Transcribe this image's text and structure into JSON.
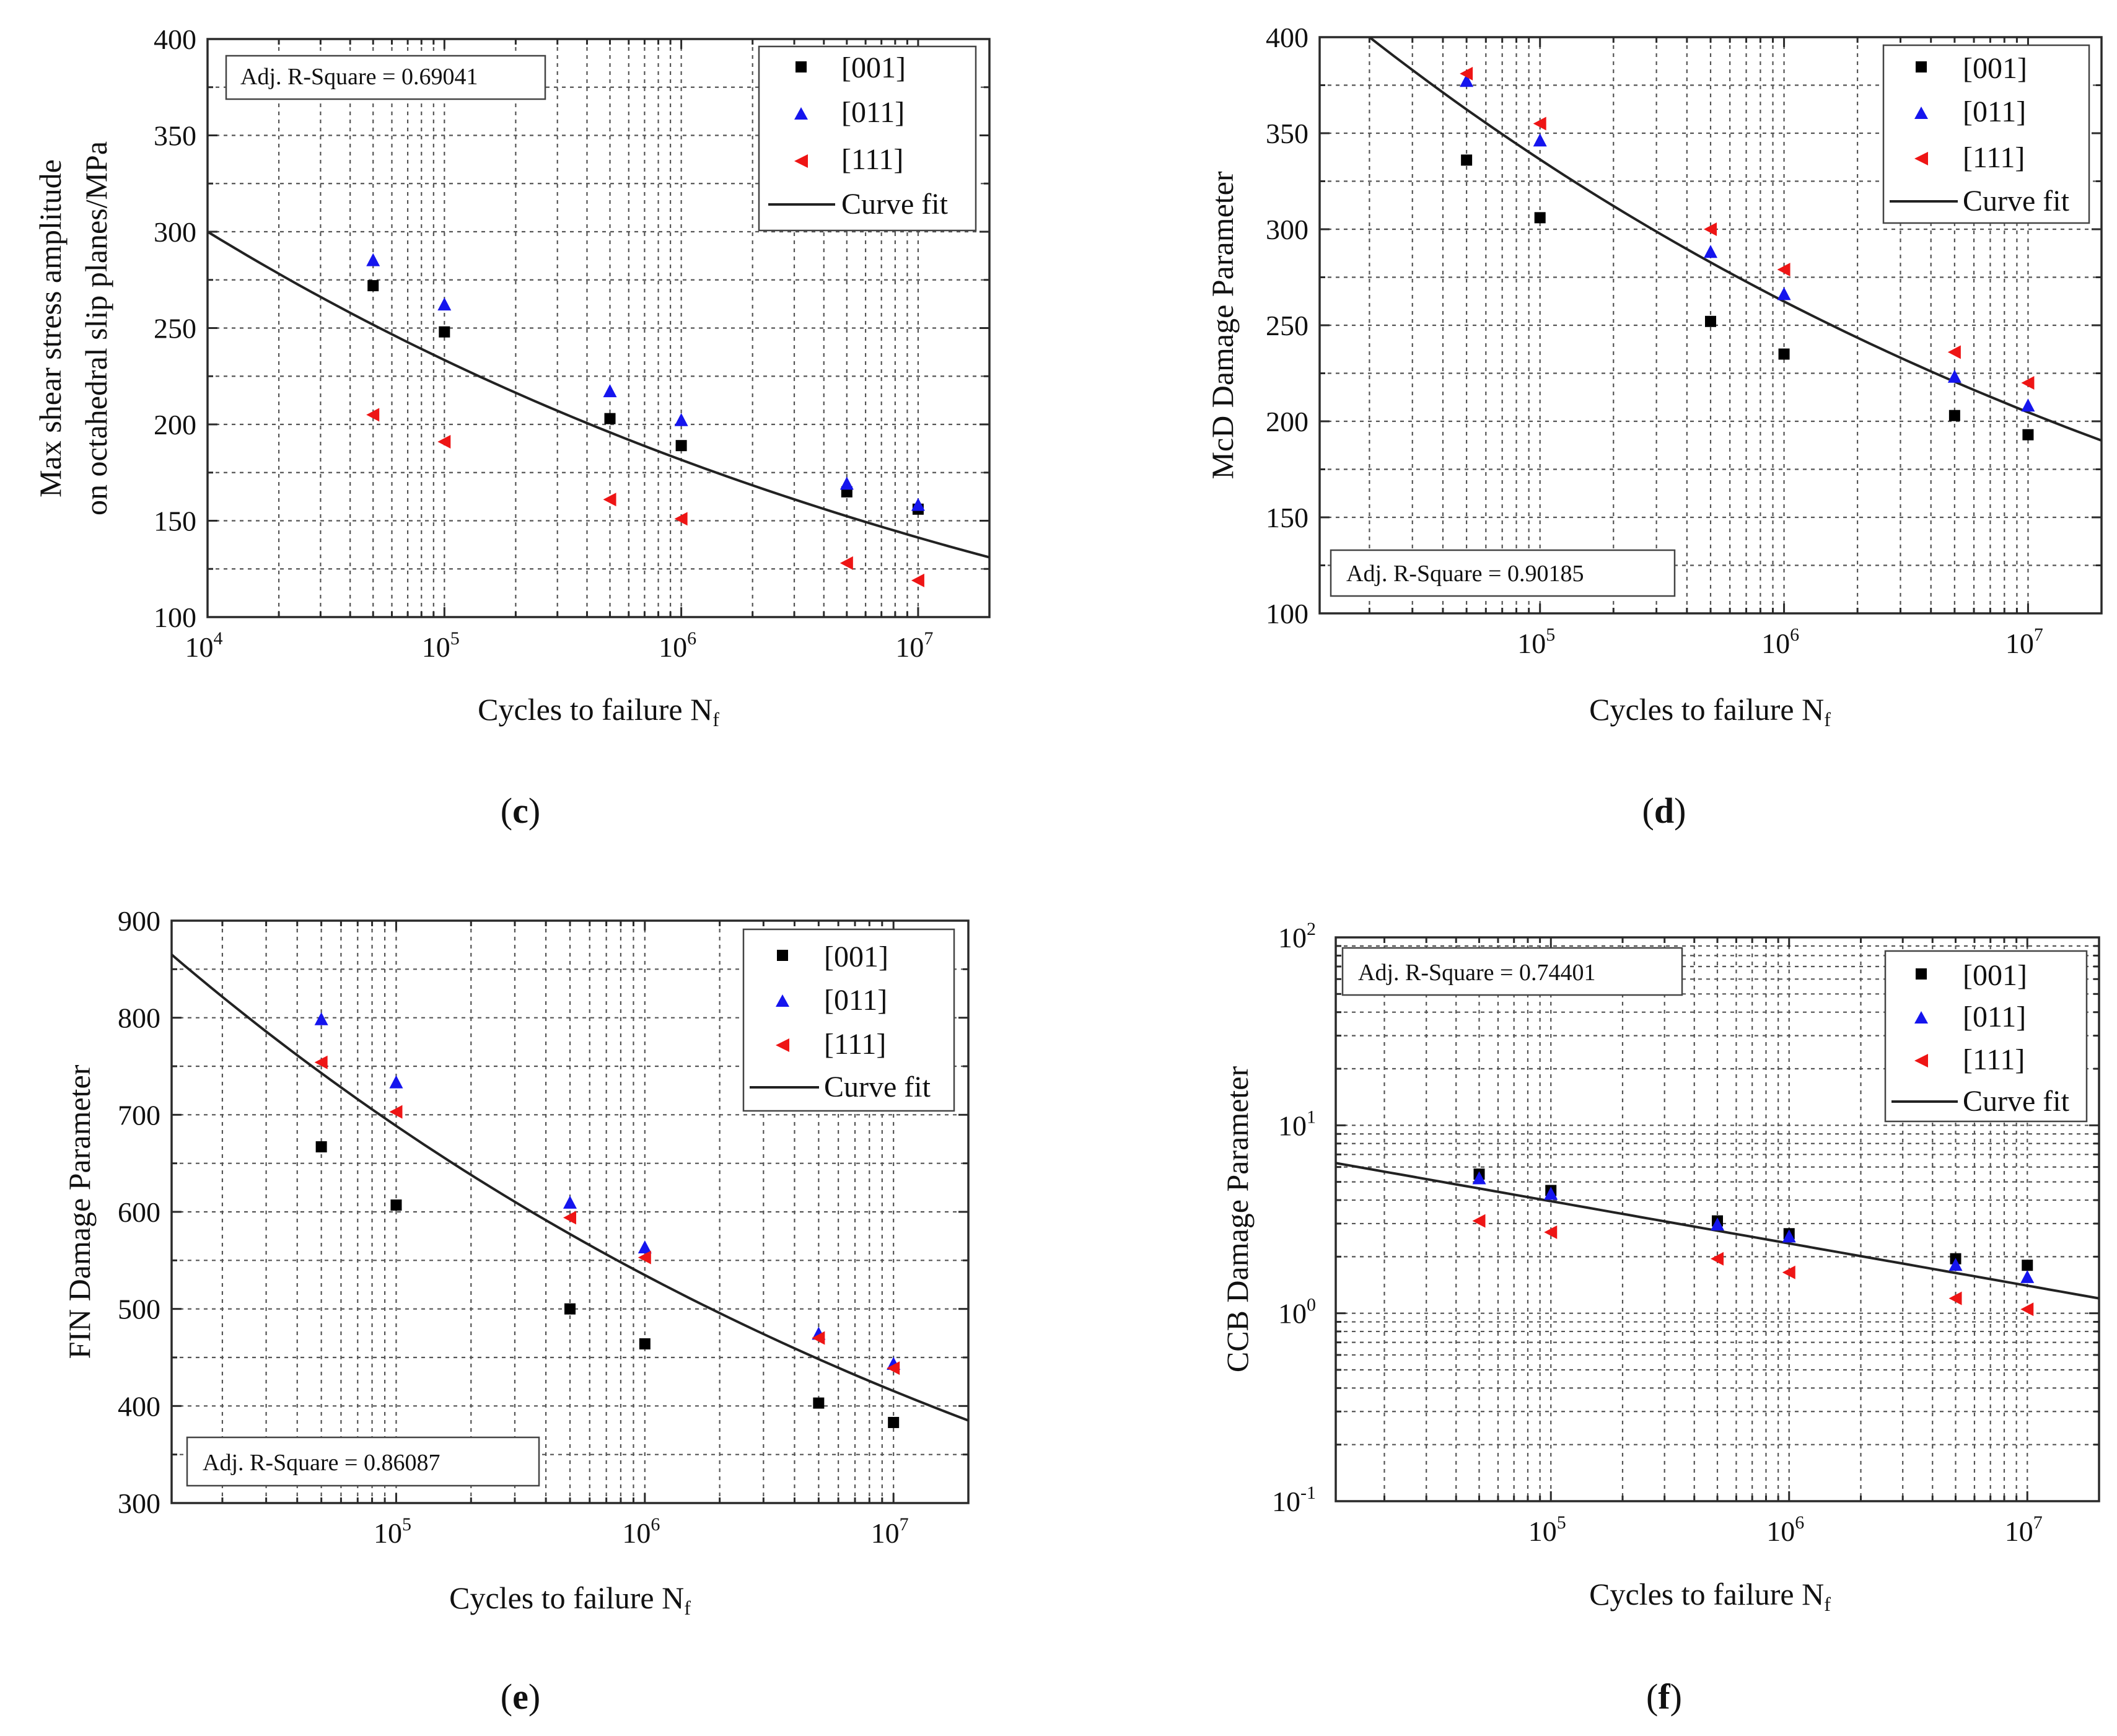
{
  "panels": [
    {
      "label": "c",
      "xlabel": "Cycles to failure N",
      "xlabel_sub": "f",
      "ylabel": [
        "Max shear stress amplitude",
        "on octahedral slip planes/MPa"
      ],
      "r2": "Adj. R-Square = 0.69041",
      "legend": [
        "[001]",
        "[011]",
        "[111]",
        "Curve fit"
      ]
    },
    {
      "label": "d",
      "xlabel": "Cycles to failure N",
      "xlabel_sub": "f",
      "ylabel": [
        "McD Damage Parameter"
      ],
      "r2": "Adj. R-Square = 0.90185",
      "legend": [
        "[001]",
        "[011]",
        "[111]",
        "Curve fit"
      ]
    },
    {
      "label": "e",
      "xlabel": "Cycles to failure N",
      "xlabel_sub": "f",
      "ylabel": [
        "FIN Damage Parameter"
      ],
      "r2": "Adj. R-Square = 0.86087",
      "legend": [
        "[001]",
        "[011]",
        "[111]",
        "Curve fit"
      ]
    },
    {
      "label": "f",
      "xlabel": "Cycles to failure N",
      "xlabel_sub": "f",
      "ylabel": [
        "CCB Damage Parameter"
      ],
      "r2": "Adj. R-Square = 0.74401",
      "legend": [
        "[001]",
        "[011]",
        "[111]",
        "Curve fit"
      ]
    }
  ],
  "colors": {
    "001": "#000000",
    "011": "#1515ee",
    "111": "#ee1515",
    "fit": "#222222"
  },
  "chart_data": [
    {
      "type": "scatter",
      "xscale": "log",
      "xlim": [
        10000,
        20000000
      ],
      "x_tick_labels": [
        [
          "10",
          "4"
        ],
        [
          "10",
          "5"
        ],
        [
          "10",
          "6"
        ],
        [
          "10",
          "7"
        ]
      ],
      "yscale": "linear",
      "ylim": [
        100,
        400
      ],
      "y_tick_labels": [
        "100",
        "150",
        "200",
        "250",
        "300",
        "350",
        "400"
      ],
      "grid": true,
      "series": [
        {
          "name": "[001]",
          "x": [
            50000,
            100000,
            500000,
            1000000,
            5000000,
            10000000
          ],
          "y": [
            272,
            248,
            203,
            189,
            165,
            156
          ]
        },
        {
          "name": "[011]",
          "x": [
            50000,
            100000,
            500000,
            1000000,
            5000000,
            10000000
          ],
          "y": [
            285,
            262,
            217,
            202,
            169,
            158
          ]
        },
        {
          "name": "[111]",
          "x": [
            50000,
            100000,
            500000,
            1000000,
            5000000,
            10000000
          ],
          "y": [
            205,
            191,
            161,
            151,
            128,
            119
          ]
        }
      ],
      "curve_fit": {
        "x": [
          10000,
          20000000
        ],
        "y": [
          300,
          131
        ]
      }
    },
    {
      "type": "scatter",
      "xscale": "log",
      "xlim": [
        12500,
        20000000
      ],
      "x_tick_labels": [
        [
          "10",
          "5"
        ],
        [
          "10",
          "6"
        ],
        [
          "10",
          "7"
        ]
      ],
      "yscale": "linear",
      "ylim": [
        100,
        400
      ],
      "y_tick_labels": [
        "100",
        "150",
        "200",
        "250",
        "300",
        "350",
        "400"
      ],
      "grid": true,
      "series": [
        {
          "name": "[001]",
          "x": [
            50000,
            100000,
            500000,
            1000000,
            5000000,
            10000000
          ],
          "y": [
            336,
            306,
            252,
            235,
            203,
            193
          ]
        },
        {
          "name": "[011]",
          "x": [
            50000,
            100000,
            500000,
            1000000,
            5000000,
            10000000
          ],
          "y": [
            377,
            346,
            288,
            266,
            223,
            208
          ]
        },
        {
          "name": "[111]",
          "x": [
            50000,
            100000,
            500000,
            1000000,
            5000000,
            10000000
          ],
          "y": [
            381,
            355,
            300,
            279,
            236,
            220
          ]
        }
      ],
      "curve_fit": {
        "x": [
          20000,
          20000000
        ],
        "y": [
          400,
          190
        ]
      }
    },
    {
      "type": "scatter",
      "xscale": "log",
      "xlim": [
        12500,
        20000000
      ],
      "x_tick_labels": [
        [
          "10",
          "5"
        ],
        [
          "10",
          "6"
        ],
        [
          "10",
          "7"
        ]
      ],
      "yscale": "linear",
      "ylim": [
        300,
        900
      ],
      "y_tick_labels": [
        "300",
        "400",
        "500",
        "600",
        "700",
        "800",
        "900"
      ],
      "grid": true,
      "series": [
        {
          "name": "[001]",
          "x": [
            50000,
            100000,
            500000,
            1000000,
            5000000,
            10000000
          ],
          "y": [
            667,
            607,
            500,
            464,
            403,
            383
          ]
        },
        {
          "name": "[011]",
          "x": [
            50000,
            100000,
            500000,
            1000000,
            5000000,
            10000000
          ],
          "y": [
            798,
            733,
            609,
            563,
            474,
            443
          ]
        },
        {
          "name": "[111]",
          "x": [
            50000,
            100000,
            500000,
            1000000,
            5000000,
            10000000
          ],
          "y": [
            754,
            703,
            594,
            553,
            470,
            439
          ]
        }
      ],
      "curve_fit": {
        "x": [
          12500,
          20000000
        ],
        "y": [
          865,
          385
        ]
      }
    },
    {
      "type": "scatter",
      "xscale": "log",
      "xlim": [
        12500,
        20000000
      ],
      "x_tick_labels": [
        [
          "10",
          "5"
        ],
        [
          "10",
          "6"
        ],
        [
          "10",
          "7"
        ]
      ],
      "yscale": "log",
      "ylim": [
        0.1,
        100
      ],
      "y_tick_labels": [
        [
          "10",
          "-1"
        ],
        [
          "10",
          "0"
        ],
        [
          "10",
          "1"
        ],
        [
          "10",
          "2"
        ]
      ],
      "grid": true,
      "series": [
        {
          "name": "[001]",
          "x": [
            50000,
            100000,
            500000,
            1000000,
            5000000,
            10000000
          ],
          "y": [
            5.5,
            4.5,
            3.1,
            2.65,
            1.95,
            1.8
          ]
        },
        {
          "name": "[011]",
          "x": [
            50000,
            100000,
            500000,
            1000000,
            5000000,
            10000000
          ],
          "y": [
            5.2,
            4.3,
            2.95,
            2.55,
            1.8,
            1.55
          ]
        },
        {
          "name": "[111]",
          "x": [
            50000,
            100000,
            500000,
            1000000,
            5000000,
            10000000
          ],
          "y": [
            3.1,
            2.7,
            1.95,
            1.65,
            1.2,
            1.05
          ]
        }
      ],
      "curve_fit": {
        "x": [
          12500,
          20000000
        ],
        "y": [
          6.3,
          1.2
        ]
      }
    }
  ]
}
